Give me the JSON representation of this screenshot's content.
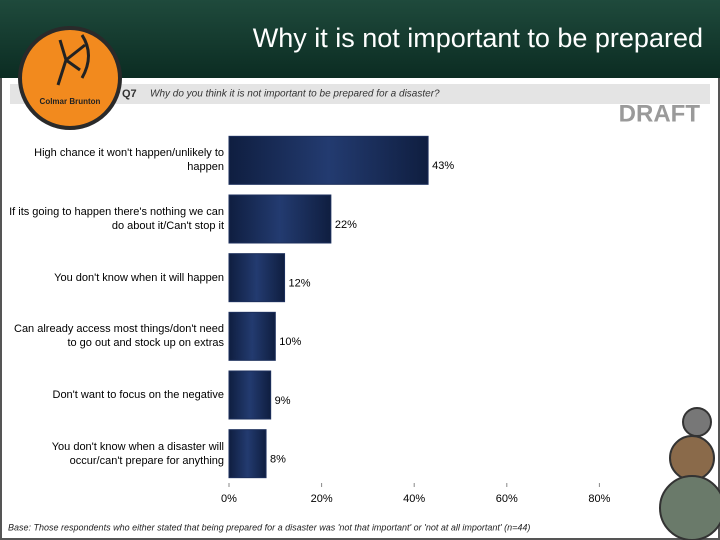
{
  "logo": "Colmar Brunton",
  "chart_data": {
    "type": "hbar",
    "title": "Why it is not important to be prepared",
    "question_number": "Q7",
    "question": "Why do you think it is not important to be prepared for a disaster?",
    "annotation": "DRAFT",
    "note": "Base: Those respondents who either stated that being prepared for a disaster was 'not that important' or 'not at all important' (n=44)",
    "categories": [
      "High chance it won't happen/unlikely to happen",
      "If its going to happen there's nothing we can do about it/Can't stop it",
      "You don't know when it will happen",
      "Can already access most things/don't need to go out and stock up on extras",
      "Don't want to focus on the negative",
      "You don't know when a disaster will occur/can't prepare for anything"
    ],
    "values": [
      43,
      22,
      12,
      10,
      9,
      8
    ],
    "value_labels": [
      "43%",
      "22%",
      "12%",
      "10%",
      "9%",
      "8%"
    ],
    "color": "#1c2f5c",
    "xlim": [
      0,
      100
    ],
    "xticks": [
      {
        "value": 0,
        "label": "0%"
      },
      {
        "value": 20,
        "label": "20%"
      },
      {
        "value": 40,
        "label": "40%"
      },
      {
        "value": 60,
        "label": "60%"
      },
      {
        "value": 80,
        "label": "80%"
      }
    ]
  }
}
